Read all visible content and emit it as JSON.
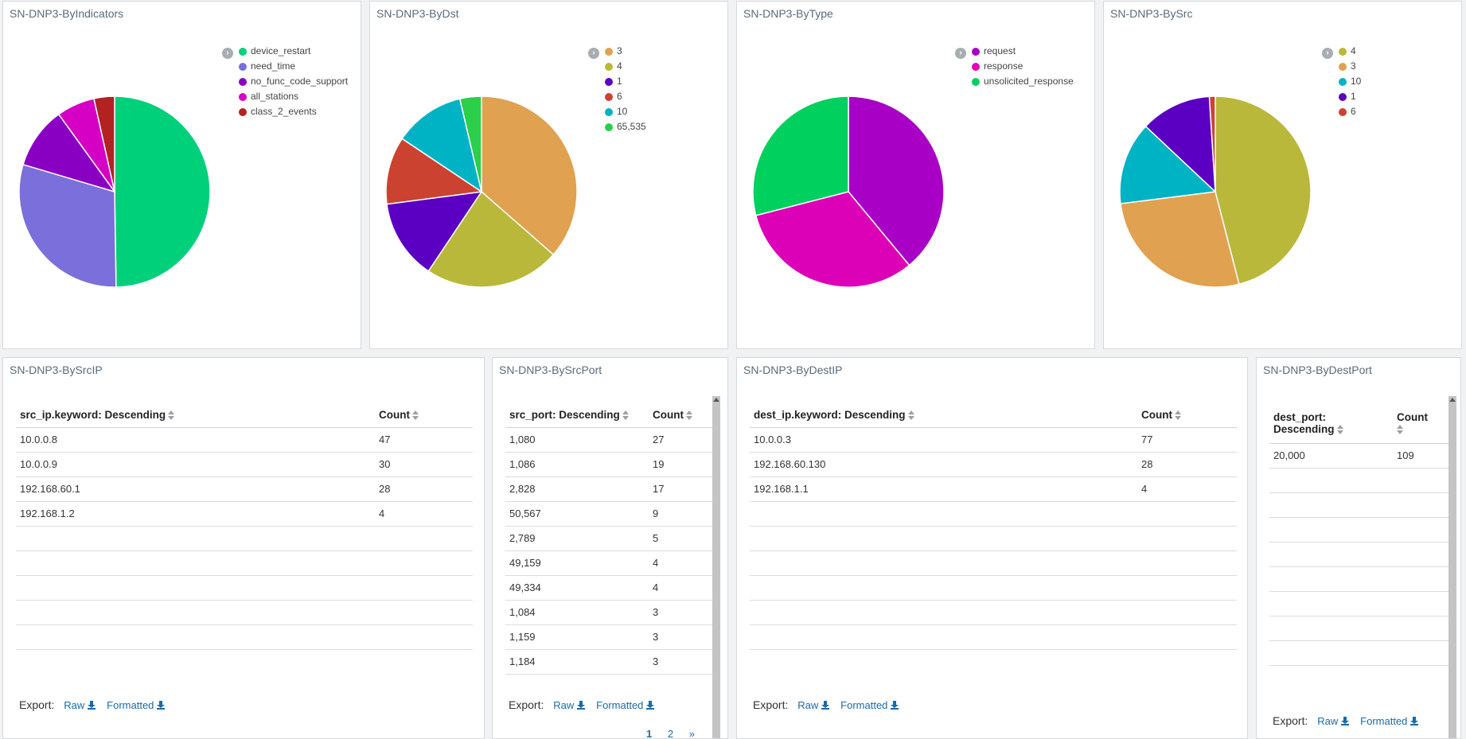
{
  "pies": [
    {
      "title": "SN-DNP3-ByIndicators",
      "labels": [
        "device_restart",
        "need_time",
        "no_func_code_support",
        "all_stations",
        "class_2_events"
      ],
      "colors": [
        "#00d07a",
        "#7b6fdb",
        "#8a00c2",
        "#d500c4",
        "#b22222"
      ],
      "values": [
        50,
        30,
        10.5,
        6.5,
        3.5
      ]
    },
    {
      "title": "SN-DNP3-ByDst",
      "labels": [
        "3",
        "4",
        "1",
        "6",
        "10",
        "65,535"
      ],
      "colors": [
        "#e0a150",
        "#b9b83a",
        "#5b00c2",
        "#cc4231",
        "#00b3c4",
        "#2ccf4a"
      ],
      "values": [
        35,
        22,
        13,
        11,
        11.5,
        3.5
      ]
    },
    {
      "title": "SN-DNP3-ByType",
      "labels": [
        "request",
        "response",
        "unsolicited_response"
      ],
      "colors": [
        "#a800c4",
        "#dc00b6",
        "#00d05e"
      ],
      "values": [
        39,
        32,
        29
      ]
    },
    {
      "title": "SN-DNP3-BySrc",
      "labels": [
        "4",
        "3",
        "10",
        "1",
        "6"
      ],
      "colors": [
        "#b9b83a",
        "#e0a150",
        "#00b3c4",
        "#5b00c2",
        "#cc4231"
      ],
      "values": [
        46,
        27,
        14,
        12,
        1
      ]
    }
  ],
  "tables": [
    {
      "title": "SN-DNP3-BySrcIP",
      "col1": "src_ip.keyword: Descending",
      "col2": "Count",
      "rows": [
        [
          "10.0.0.8",
          "47"
        ],
        [
          "10.0.0.9",
          "30"
        ],
        [
          "192.168.60.1",
          "28"
        ],
        [
          "192.168.1.2",
          "4"
        ],
        [
          "",
          ""
        ],
        [
          "",
          ""
        ],
        [
          "",
          ""
        ],
        [
          "",
          ""
        ],
        [
          "",
          ""
        ]
      ],
      "export_label": "Export:",
      "raw_label": "Raw",
      "formatted_label": "Formatted"
    },
    {
      "title": "SN-DNP3-BySrcPort",
      "col1": "src_port: Descending",
      "col2": "Count",
      "rows": [
        [
          "1,080",
          "27"
        ],
        [
          "1,086",
          "19"
        ],
        [
          "2,828",
          "17"
        ],
        [
          "50,567",
          "9"
        ],
        [
          "2,789",
          "5"
        ],
        [
          "49,159",
          "4"
        ],
        [
          "49,334",
          "4"
        ],
        [
          "1,084",
          "3"
        ],
        [
          "1,159",
          "3"
        ],
        [
          "1,184",
          "3"
        ]
      ],
      "export_label": "Export:",
      "raw_label": "Raw",
      "formatted_label": "Formatted",
      "pages": [
        "1",
        "2",
        "»"
      ]
    },
    {
      "title": "SN-DNP3-ByDestIP",
      "col1": "dest_ip.keyword: Descending",
      "col2": "Count",
      "rows": [
        [
          "10.0.0.3",
          "77"
        ],
        [
          "192.168.60.130",
          "28"
        ],
        [
          "192.168.1.1",
          "4"
        ],
        [
          "",
          ""
        ],
        [
          "",
          ""
        ],
        [
          "",
          ""
        ],
        [
          "",
          ""
        ],
        [
          "",
          ""
        ],
        [
          "",
          ""
        ]
      ],
      "export_label": "Export:",
      "raw_label": "Raw",
      "formatted_label": "Formatted"
    },
    {
      "title": "SN-DNP3-ByDestPort",
      "col1a": "dest_port:",
      "col1b": "Descending",
      "col2": "Count",
      "rows": [
        [
          "20,000",
          "109"
        ],
        [
          "",
          ""
        ],
        [
          "",
          ""
        ],
        [
          "",
          ""
        ],
        [
          "",
          ""
        ],
        [
          "",
          ""
        ],
        [
          "",
          ""
        ],
        [
          "",
          ""
        ],
        [
          "",
          ""
        ]
      ],
      "export_label": "Export:",
      "raw_label": "Raw",
      "formatted_label": "Formatted"
    }
  ]
}
